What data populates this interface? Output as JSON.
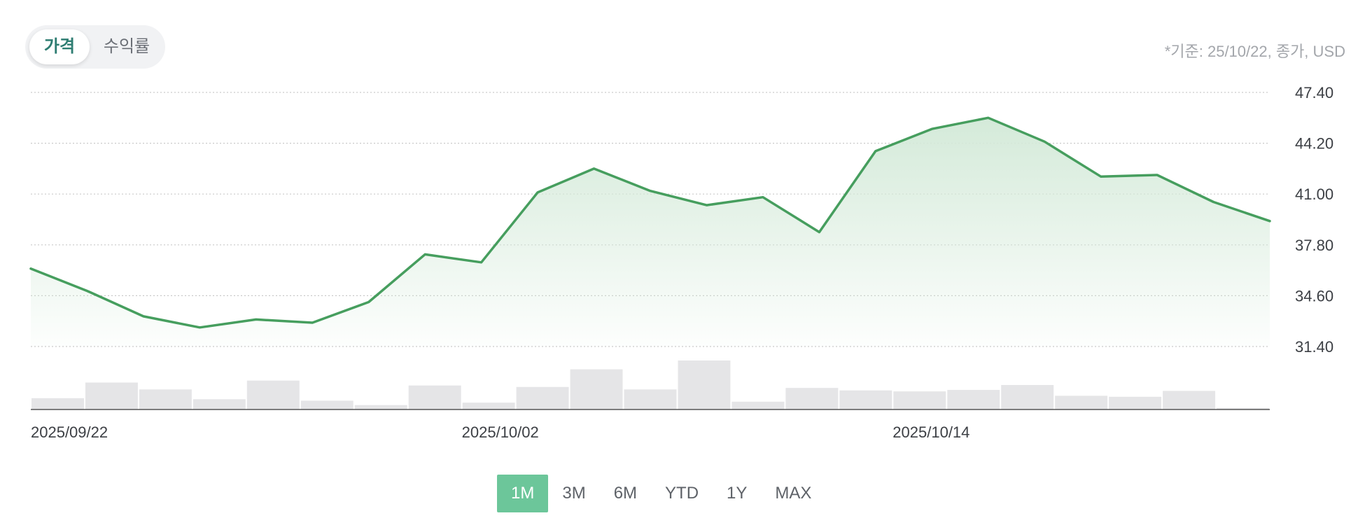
{
  "tabs": [
    {
      "label": "가격",
      "active": true
    },
    {
      "label": "수익률",
      "active": false
    }
  ],
  "note": "*기준: 25/10/22, 종가, USD",
  "ranges": [
    {
      "label": "1M",
      "active": true
    },
    {
      "label": "3M",
      "active": false
    },
    {
      "label": "6M",
      "active": false
    },
    {
      "label": "YTD",
      "active": false
    },
    {
      "label": "1Y",
      "active": false
    },
    {
      "label": "MAX",
      "active": false
    }
  ],
  "colors": {
    "line": "#469e5e",
    "fill": "#d4ead9",
    "volume": "#e5e5e7",
    "grid": "#c9c9c9",
    "accent": "#6cc69a"
  },
  "chart_data": {
    "type": "line",
    "x_tick_labels": [
      "2025/09/22",
      "2025/10/02",
      "2025/10/14"
    ],
    "x_tick_indices": [
      0,
      8,
      16
    ],
    "y_ticks": [
      31.4,
      34.6,
      37.8,
      41.0,
      44.2,
      47.4
    ],
    "y_tick_labels": [
      "31.40",
      "34.60",
      "37.80",
      "41.00",
      "44.20",
      "47.40"
    ],
    "ylim": [
      31.4,
      47.4
    ],
    "grid": true,
    "series": [
      {
        "values": [
          36.3,
          34.9,
          33.3,
          32.6,
          33.1,
          32.9,
          34.2,
          37.2,
          36.7,
          41.1,
          42.6,
          41.2,
          40.3,
          40.8,
          38.6,
          43.7,
          45.1,
          45.8,
          44.3,
          42.1,
          42.2,
          40.5,
          39.3
        ]
      }
    ],
    "volume": [
      0.23,
      0.55,
      0.41,
      0.21,
      0.59,
      0.18,
      0.09,
      0.49,
      0.14,
      0.46,
      0.82,
      0.41,
      1.0,
      0.16,
      0.44,
      0.39,
      0.37,
      0.4,
      0.5,
      0.28,
      0.26,
      0.38,
      0.03
    ]
  }
}
